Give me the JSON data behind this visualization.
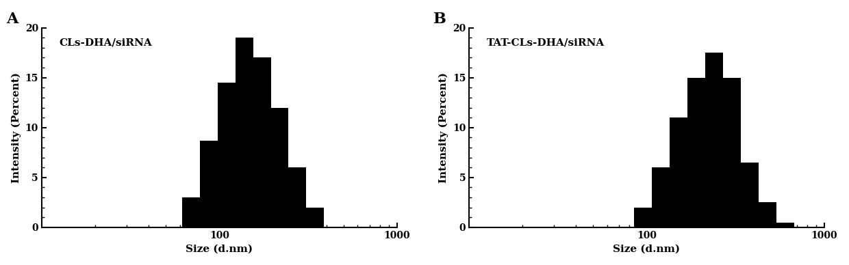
{
  "panel_A": {
    "label": "A",
    "title": "CLs-DHA/siRNA",
    "ylabel": "Intensity (Percent)",
    "xlabel": "Size (d.nm)",
    "xlim": [
      10,
      1000
    ],
    "ylim": [
      0,
      20
    ],
    "yticks": [
      0,
      5,
      10,
      15,
      20
    ],
    "bar_edges": [
      62,
      78,
      98,
      123,
      155,
      195,
      245,
      308,
      388
    ],
    "bar_heights": [
      3.0,
      8.7,
      14.5,
      19.0,
      17.0,
      12.0,
      6.0,
      2.0
    ],
    "bar_color": "#000000"
  },
  "panel_B": {
    "label": "B",
    "title": "TAT-CLs-DHA/siRNA",
    "ylabel": "Intensity (Percent)",
    "xlabel": "Size (d.nm)",
    "xlim": [
      10,
      1000
    ],
    "ylim": [
      0,
      20
    ],
    "yticks": [
      0,
      5,
      10,
      15,
      20
    ],
    "bar_edges": [
      85,
      107,
      135,
      170,
      214,
      269,
      338,
      426,
      536,
      674
    ],
    "bar_heights": [
      2.0,
      6.0,
      11.0,
      15.0,
      17.5,
      15.0,
      6.5,
      2.5,
      0.5
    ],
    "bar_color": "#000000"
  },
  "figure_bg": "#ffffff",
  "tick_fontsize": 10,
  "axis_label_fontsize": 11,
  "panel_label_fontsize": 16,
  "title_fontsize": 11
}
